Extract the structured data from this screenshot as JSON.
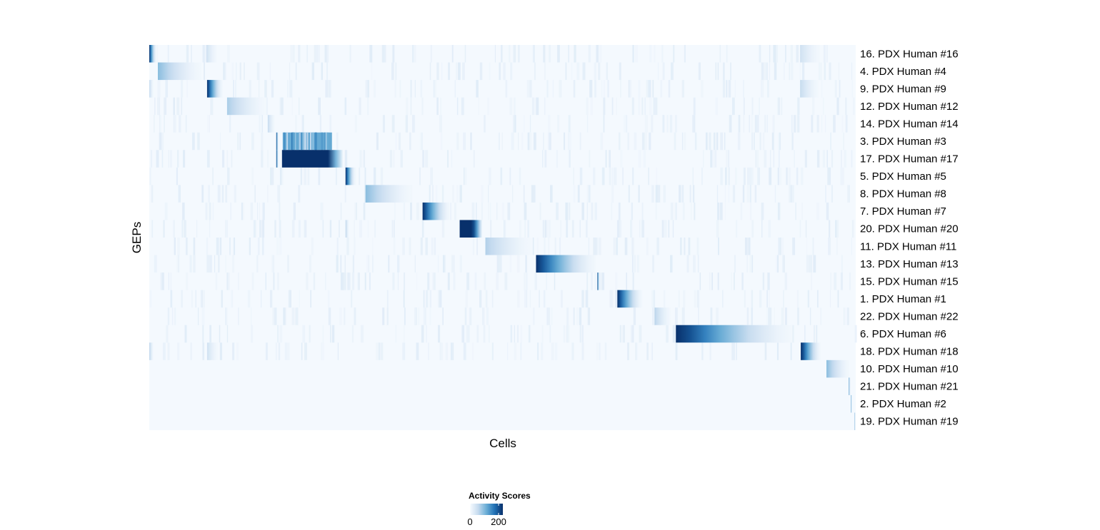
{
  "chart_data": {
    "type": "heatmap",
    "xlabel": "Cells",
    "ylabel": "GEPs",
    "grid": false,
    "colorscale": {
      "title": "Activity Scores",
      "colors": [
        "#f7fbff",
        "#c6dbef",
        "#6baed6",
        "#2171b5",
        "#08306b"
      ],
      "range": [
        0,
        230
      ],
      "ticks": [
        0,
        200
      ],
      "tick_labels": [
        "0",
        "200"
      ],
      "placement": "bottom"
    },
    "rows": [
      "16. PDX Human #16",
      "4. PDX Human #4",
      "9. PDX Human #9",
      "12. PDX Human #12",
      "14. PDX Human #14",
      "3. PDX Human #3",
      "17. PDX Human #17",
      "5. PDX Human #5",
      "8. PDX Human #8",
      "7. PDX Human #7",
      "20. PDX Human #20",
      "11. PDX Human #11",
      "13. PDX Human #13",
      "15. PDX Human #15",
      "1. PDX Human #1",
      "22. PDX Human #22",
      "6. PDX Human #6",
      "18. PDX Human #18",
      "10. PDX Human #10",
      "21. PDX Human #21",
      "2. PDX Human #2",
      "19. PDX Human #19"
    ],
    "n_cells": 990,
    "blocks": [
      {
        "row": 0,
        "start": 0,
        "end": 10,
        "peak": 230
      },
      {
        "row": 0,
        "start": 80,
        "end": 95,
        "peak": 40
      },
      {
        "row": 0,
        "start": 912,
        "end": 940,
        "peak": 40
      },
      {
        "row": 1,
        "start": 12,
        "end": 73,
        "peak": 90
      },
      {
        "row": 2,
        "start": 81,
        "end": 103,
        "peak": 230
      },
      {
        "row": 2,
        "start": 0,
        "end": 6,
        "peak": 50
      },
      {
        "row": 2,
        "start": 912,
        "end": 938,
        "peak": 50
      },
      {
        "row": 3,
        "start": 109,
        "end": 163,
        "peak": 70
      },
      {
        "row": 4,
        "start": 166,
        "end": 176,
        "peak": 50
      },
      {
        "row": 5,
        "start": 178,
        "end": 181,
        "peak": 230
      },
      {
        "row": 5,
        "start": 187,
        "end": 256,
        "peak": 120,
        "flat": true
      },
      {
        "row": 6,
        "start": 178,
        "end": 181,
        "peak": 230
      },
      {
        "row": 6,
        "start": 186,
        "end": 272,
        "peak": 240,
        "plateau": 0.75
      },
      {
        "row": 7,
        "start": 275,
        "end": 289,
        "peak": 230
      },
      {
        "row": 8,
        "start": 303,
        "end": 368,
        "peak": 90
      },
      {
        "row": 9,
        "start": 383,
        "end": 421,
        "peak": 230
      },
      {
        "row": 10,
        "start": 435,
        "end": 467,
        "peak": 240,
        "plateau": 0.6
      },
      {
        "row": 10,
        "start": 275,
        "end": 280,
        "peak": 60
      },
      {
        "row": 11,
        "start": 471,
        "end": 536,
        "peak": 65
      },
      {
        "row": 12,
        "start": 542,
        "end": 626,
        "peak": 230
      },
      {
        "row": 13,
        "start": 628,
        "end": 631,
        "peak": 230
      },
      {
        "row": 14,
        "start": 656,
        "end": 691,
        "peak": 230
      },
      {
        "row": 15,
        "start": 708,
        "end": 731,
        "peak": 60
      },
      {
        "row": 16,
        "start": 738,
        "end": 901,
        "peak": 240
      },
      {
        "row": 17,
        "start": 913,
        "end": 941,
        "peak": 240
      },
      {
        "row": 17,
        "start": 0,
        "end": 6,
        "peak": 60
      },
      {
        "row": 17,
        "start": 81,
        "end": 96,
        "peak": 40
      },
      {
        "row": 18,
        "start": 949,
        "end": 981,
        "peak": 90
      },
      {
        "row": 19,
        "start": 980,
        "end": 983,
        "peak": 110
      },
      {
        "row": 20,
        "start": 983,
        "end": 985,
        "peak": 120
      },
      {
        "row": 21,
        "start": 988,
        "end": 990,
        "peak": 90
      }
    ]
  }
}
